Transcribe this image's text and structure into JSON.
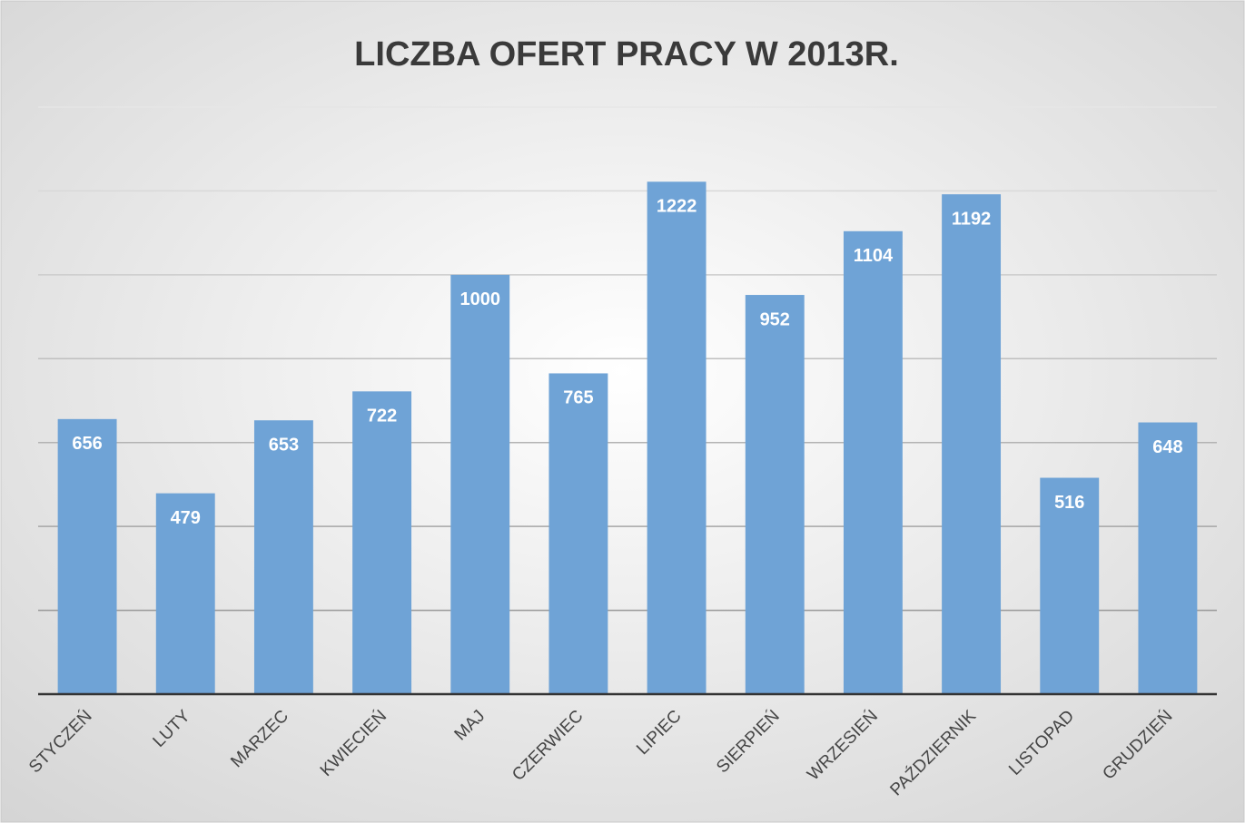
{
  "chart_data": {
    "type": "bar",
    "title": "LICZBA OFERT PRACY W 2013R.",
    "categories": [
      "STYCZEŃ",
      "LUTY",
      "MARZEC",
      "KWIECIEŃ",
      "MAJ",
      "CZERWIEC",
      "LIPIEC",
      "SIERPIEŃ",
      "WRZESIEŃ",
      "PAŹDZIERNIK",
      "LISTOPAD",
      "GRUDZIEŃ"
    ],
    "values": [
      656,
      479,
      653,
      722,
      1000,
      765,
      1222,
      952,
      1104,
      1192,
      516,
      648
    ],
    "color": "#6fa3d6",
    "ylim": [
      0,
      1400
    ],
    "yticks": [
      0,
      200,
      400,
      600,
      800,
      1000,
      1200,
      1400
    ],
    "grid": true
  }
}
